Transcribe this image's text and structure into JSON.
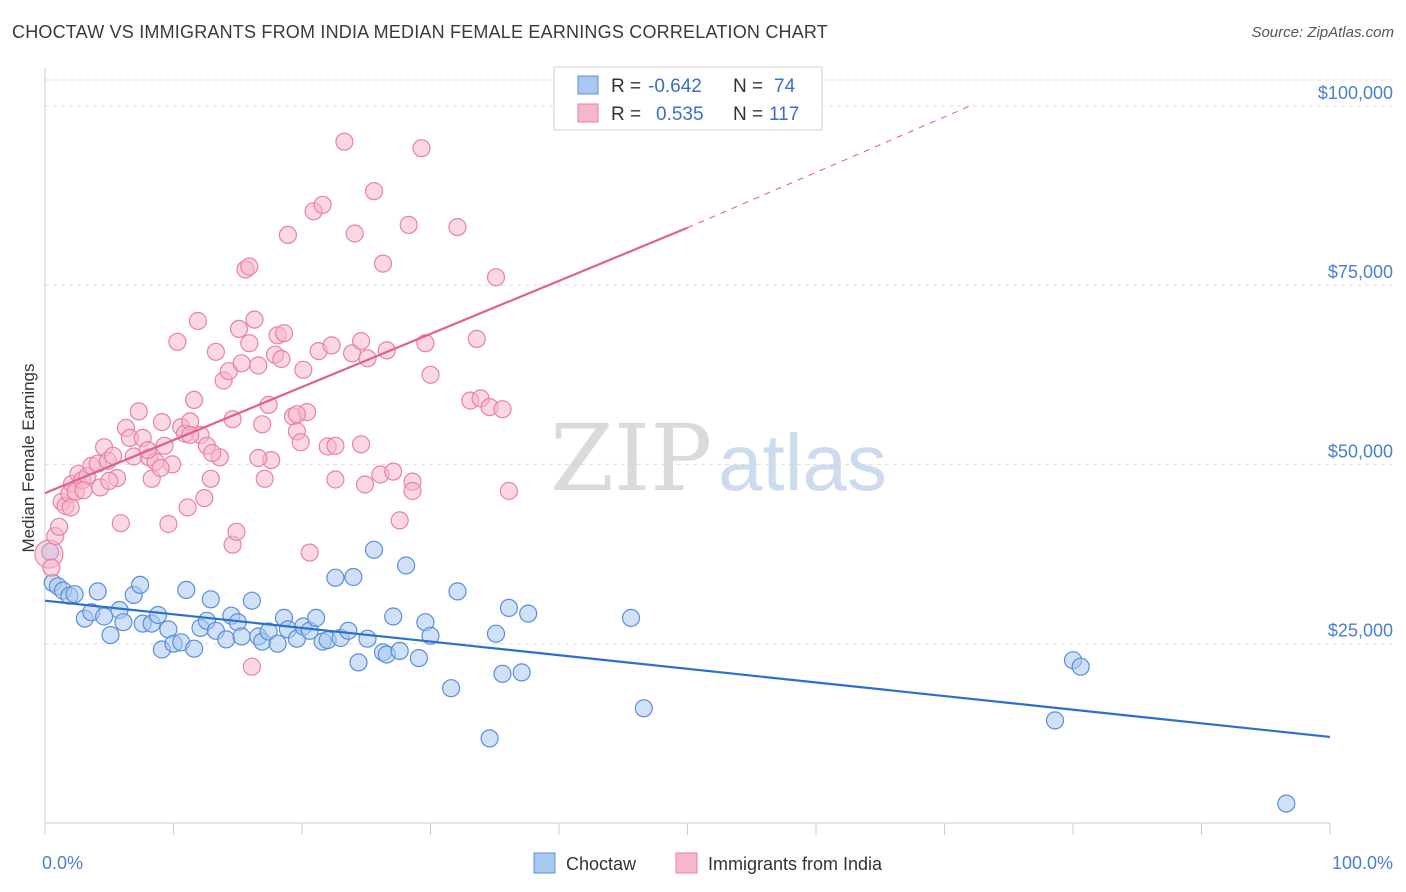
{
  "title": "CHOCTAW VS IMMIGRANTS FROM INDIA MEDIAN FEMALE EARNINGS CORRELATION CHART",
  "source": "Source: ZipAtlas.com",
  "watermark": {
    "zip": "ZIP",
    "atlas": "atlas"
  },
  "colors": {
    "choctaw_fill": "#a9c8f0",
    "choctaw_stroke": "#5a8fd8",
    "choctaw_line": "#2b6fd1",
    "india_fill": "#f6b7cc",
    "india_stroke": "#e882a3",
    "india_line": "#e0618c",
    "grid": "#dddddd",
    "axis_label": "#4a7fd0"
  },
  "legend": {
    "rows": [
      {
        "r_label": "R = ",
        "r_value": "-0.642",
        "n_label": "N = ",
        "n_value": "74"
      },
      {
        "r_label": "R = ",
        "r_value": "0.535",
        "n_label": "N = ",
        "n_value": "117"
      }
    ]
  },
  "chart_data": {
    "type": "scatter",
    "ylabel": "Median Female Earnings",
    "xlim": [
      0,
      100
    ],
    "ylim": [
      0,
      105000
    ],
    "x_tick_labels": [
      "0.0%",
      "100.0%"
    ],
    "y_ticks": [
      {
        "value": 25000,
        "label": "$25,000"
      },
      {
        "value": 50000,
        "label": "$50,000"
      },
      {
        "value": 75000,
        "label": "$75,000"
      },
      {
        "value": 100000,
        "label": "$100,000"
      }
    ],
    "grid": true,
    "legend_position": "top-center",
    "series": [
      {
        "name": "Choctaw",
        "r": -0.642,
        "n": 74,
        "trend": {
          "x0": 0,
          "y0": 31000,
          "x1": 100,
          "y1": 12000
        },
        "points": [
          [
            0.4,
            37800
          ],
          [
            0.6,
            33500
          ],
          [
            1.0,
            33000
          ],
          [
            1.4,
            32400
          ],
          [
            1.9,
            31700
          ],
          [
            2.3,
            31900
          ],
          [
            3.1,
            28500
          ],
          [
            3.6,
            29400
          ],
          [
            4.1,
            32300
          ],
          [
            4.6,
            28800
          ],
          [
            5.1,
            26200
          ],
          [
            5.8,
            29700
          ],
          [
            6.1,
            28000
          ],
          [
            6.9,
            31800
          ],
          [
            7.4,
            33200
          ],
          [
            7.6,
            27800
          ],
          [
            8.3,
            27800
          ],
          [
            8.8,
            29000
          ],
          [
            9.1,
            24200
          ],
          [
            9.6,
            27000
          ],
          [
            10.0,
            25000
          ],
          [
            10.6,
            25200
          ],
          [
            11.0,
            32500
          ],
          [
            11.6,
            24300
          ],
          [
            12.1,
            27200
          ],
          [
            12.6,
            28200
          ],
          [
            12.9,
            31200
          ],
          [
            13.3,
            26800
          ],
          [
            14.1,
            25600
          ],
          [
            14.5,
            28900
          ],
          [
            15.0,
            28000
          ],
          [
            15.3,
            26000
          ],
          [
            16.1,
            31000
          ],
          [
            16.6,
            26000
          ],
          [
            16.9,
            25300
          ],
          [
            17.4,
            26700
          ],
          [
            18.1,
            25000
          ],
          [
            18.6,
            28600
          ],
          [
            18.9,
            27000
          ],
          [
            19.6,
            25700
          ],
          [
            20.1,
            27400
          ],
          [
            20.6,
            26800
          ],
          [
            21.1,
            28600
          ],
          [
            21.6,
            25300
          ],
          [
            22.0,
            25500
          ],
          [
            22.6,
            34200
          ],
          [
            23.0,
            25800
          ],
          [
            23.6,
            26800
          ],
          [
            24.0,
            34300
          ],
          [
            24.4,
            22400
          ],
          [
            25.1,
            25700
          ],
          [
            25.6,
            38100
          ],
          [
            26.3,
            23800
          ],
          [
            26.6,
            23500
          ],
          [
            27.1,
            28800
          ],
          [
            27.6,
            24000
          ],
          [
            28.1,
            35900
          ],
          [
            29.1,
            23000
          ],
          [
            29.6,
            28000
          ],
          [
            30.0,
            26100
          ],
          [
            31.6,
            18800
          ],
          [
            32.1,
            32300
          ],
          [
            35.1,
            26400
          ],
          [
            35.6,
            20800
          ],
          [
            36.1,
            30000
          ],
          [
            37.1,
            21000
          ],
          [
            37.6,
            29200
          ],
          [
            45.6,
            28600
          ],
          [
            46.6,
            16000
          ],
          [
            34.6,
            11800
          ],
          [
            78.6,
            14300
          ],
          [
            80.0,
            22700
          ],
          [
            80.6,
            21800
          ],
          [
            96.6,
            2700
          ]
        ]
      },
      {
        "name": "Immigrants from India",
        "r": 0.535,
        "n": 117,
        "trend": {
          "x0": 0,
          "y0": 46000,
          "x1": 50,
          "y1": 83000
        },
        "trend_dashed": {
          "x0": 50,
          "y0": 83000,
          "x1": 72,
          "y1": 100000
        },
        "points": [
          [
            0.3,
            37500
          ],
          [
            0.5,
            35600
          ],
          [
            0.8,
            40000
          ],
          [
            1.1,
            41300
          ],
          [
            1.3,
            44800
          ],
          [
            1.6,
            44200
          ],
          [
            1.9,
            45900
          ],
          [
            2.1,
            47300
          ],
          [
            2.4,
            46200
          ],
          [
            2.6,
            48700
          ],
          [
            2.9,
            47800
          ],
          [
            3.3,
            48400
          ],
          [
            3.6,
            49800
          ],
          [
            4.1,
            50100
          ],
          [
            4.3,
            46800
          ],
          [
            4.6,
            52400
          ],
          [
            4.9,
            50500
          ],
          [
            5.3,
            51200
          ],
          [
            5.6,
            48100
          ],
          [
            5.9,
            41800
          ],
          [
            6.3,
            55100
          ],
          [
            6.6,
            53700
          ],
          [
            6.9,
            51100
          ],
          [
            7.3,
            57400
          ],
          [
            7.6,
            53700
          ],
          [
            8.1,
            51000
          ],
          [
            8.3,
            48000
          ],
          [
            8.6,
            50400
          ],
          [
            9.1,
            55900
          ],
          [
            9.3,
            52600
          ],
          [
            9.6,
            41700
          ],
          [
            9.9,
            50000
          ],
          [
            10.3,
            67100
          ],
          [
            10.6,
            55200
          ],
          [
            10.9,
            54300
          ],
          [
            11.1,
            44000
          ],
          [
            11.3,
            56000
          ],
          [
            11.6,
            59000
          ],
          [
            11.9,
            70000
          ],
          [
            12.1,
            54100
          ],
          [
            12.6,
            52600
          ],
          [
            12.9,
            48000
          ],
          [
            13.3,
            65700
          ],
          [
            13.6,
            51000
          ],
          [
            13.9,
            61700
          ],
          [
            14.3,
            63000
          ],
          [
            14.6,
            38800
          ],
          [
            14.9,
            40600
          ],
          [
            15.1,
            68900
          ],
          [
            15.3,
            64100
          ],
          [
            15.6,
            77200
          ],
          [
            15.9,
            77600
          ],
          [
            16.3,
            70200
          ],
          [
            16.6,
            63800
          ],
          [
            16.9,
            55600
          ],
          [
            17.1,
            48000
          ],
          [
            17.4,
            58300
          ],
          [
            17.6,
            50600
          ],
          [
            17.9,
            65300
          ],
          [
            18.1,
            68000
          ],
          [
            18.4,
            64700
          ],
          [
            18.6,
            68300
          ],
          [
            18.9,
            82000
          ],
          [
            19.3,
            56700
          ],
          [
            19.6,
            54600
          ],
          [
            19.9,
            53100
          ],
          [
            20.1,
            63200
          ],
          [
            20.4,
            57300
          ],
          [
            20.6,
            37700
          ],
          [
            20.9,
            85300
          ],
          [
            21.3,
            65800
          ],
          [
            21.6,
            86200
          ],
          [
            22.0,
            52500
          ],
          [
            22.3,
            66600
          ],
          [
            22.6,
            47900
          ],
          [
            23.3,
            95000
          ],
          [
            23.9,
            65500
          ],
          [
            24.1,
            82200
          ],
          [
            24.6,
            67200
          ],
          [
            24.9,
            47200
          ],
          [
            25.1,
            64800
          ],
          [
            25.6,
            88100
          ],
          [
            26.1,
            48600
          ],
          [
            26.3,
            78000
          ],
          [
            27.1,
            49000
          ],
          [
            27.6,
            42200
          ],
          [
            28.3,
            83400
          ],
          [
            28.6,
            47600
          ],
          [
            29.3,
            94100
          ],
          [
            29.6,
            66900
          ],
          [
            30.0,
            62500
          ],
          [
            32.1,
            83100
          ],
          [
            33.1,
            58900
          ],
          [
            33.6,
            67500
          ],
          [
            33.9,
            59200
          ],
          [
            34.6,
            58000
          ],
          [
            35.1,
            76100
          ],
          [
            35.6,
            57700
          ],
          [
            36.1,
            46300
          ],
          [
            16.1,
            21800
          ],
          [
            13.0,
            51600
          ],
          [
            11.3,
            54100
          ],
          [
            8.0,
            52000
          ],
          [
            9.0,
            49500
          ],
          [
            5.0,
            47700
          ],
          [
            3.0,
            46400
          ],
          [
            2.0,
            44000
          ],
          [
            16.6,
            50900
          ],
          [
            19.6,
            57000
          ],
          [
            22.6,
            52600
          ],
          [
            24.6,
            52800
          ],
          [
            12.4,
            45300
          ],
          [
            26.6,
            65900
          ],
          [
            14.6,
            56300
          ],
          [
            15.9,
            66900
          ],
          [
            28.6,
            46300
          ]
        ]
      }
    ]
  }
}
